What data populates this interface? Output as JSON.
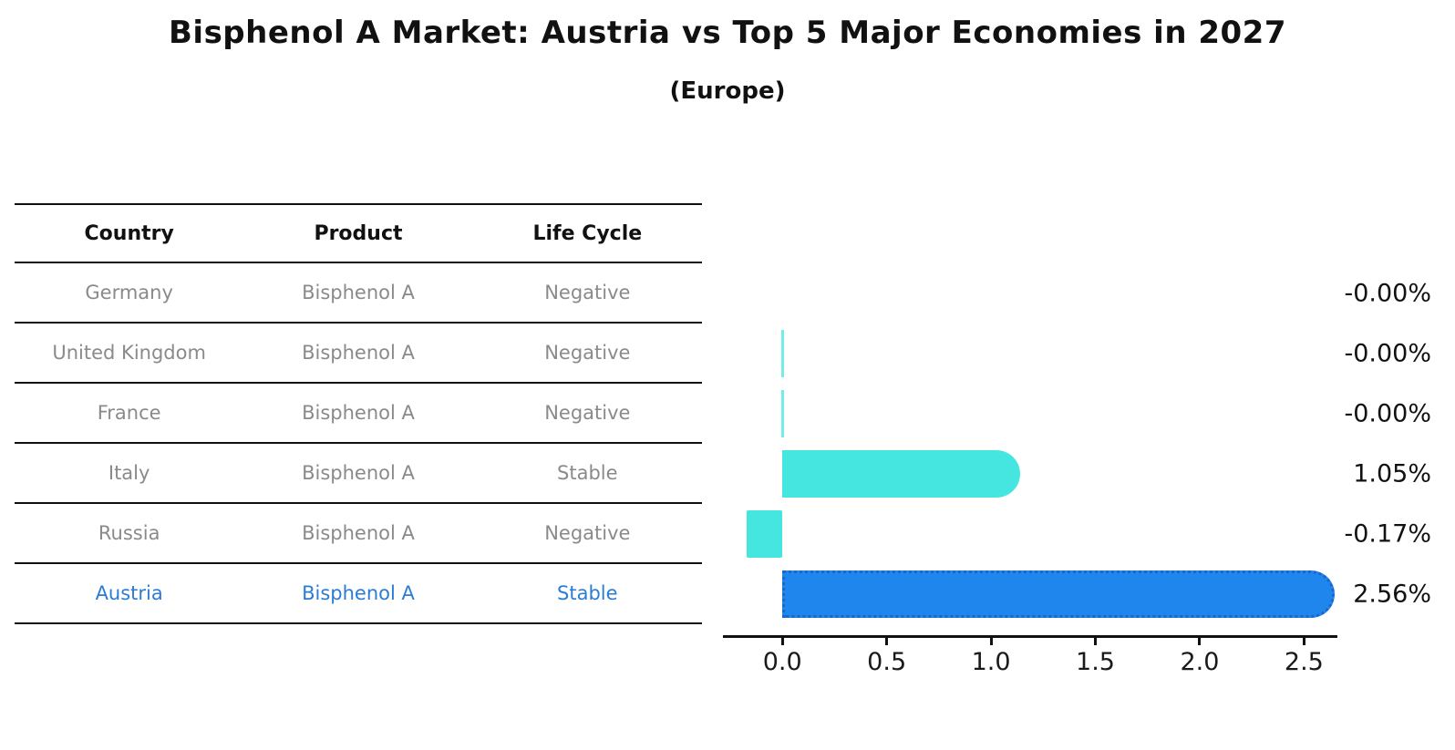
{
  "title": "Bisphenol A Market: Austria vs Top 5 Major Economies in 2027",
  "subtitle": "(Europe)",
  "table": {
    "headers": [
      "Country",
      "Product",
      "Life Cycle"
    ],
    "rows": [
      {
        "country": "Germany",
        "product": "Bisphenol A",
        "life_cycle": "Negative",
        "highlight": false
      },
      {
        "country": "United Kingdom",
        "product": "Bisphenol A",
        "life_cycle": "Negative",
        "highlight": false
      },
      {
        "country": "France",
        "product": "Bisphenol A",
        "life_cycle": "Negative",
        "highlight": false
      },
      {
        "country": "Italy",
        "product": "Bisphenol A",
        "life_cycle": "Stable",
        "highlight": false
      },
      {
        "country": "Russia",
        "product": "Bisphenol A",
        "life_cycle": "Negative",
        "highlight": false
      },
      {
        "country": "Austria",
        "product": "Bisphenol A",
        "life_cycle": "Stable",
        "highlight": true
      }
    ]
  },
  "chart_data": {
    "type": "bar",
    "orientation": "horizontal",
    "title": "Bisphenol A Market: Austria vs Top 5 Major Economies in 2027",
    "subtitle": "(Europe)",
    "categories": [
      "Germany",
      "United Kingdom",
      "France",
      "Italy",
      "Russia",
      "Austria"
    ],
    "values": [
      -0.0,
      -0.0,
      -0.0,
      1.05,
      -0.17,
      2.56
    ],
    "value_labels": [
      "-0.00%",
      "-0.00%",
      "-0.00%",
      "1.05%",
      "-0.17%",
      "2.56%"
    ],
    "x_ticks": [
      0.0,
      0.5,
      1.0,
      1.5,
      2.0,
      2.5
    ],
    "x_tick_labels": [
      "0.0",
      "0.5",
      "1.0",
      "1.5",
      "2.0",
      "2.5"
    ],
    "xlim": [
      -0.285,
      2.66
    ],
    "bar_colors": [
      "#45e6e0",
      "#45e6e0",
      "#45e6e0",
      "#45e6e0",
      "#45e6e0",
      "#1e86ec"
    ],
    "highlight_index": 5,
    "zero_mark_rows": [
      1,
      2
    ],
    "grid": false,
    "legend": false,
    "value_label_position": "right-aligned outside plot"
  },
  "colors": {
    "teal": "#45e6e0",
    "blue": "#1e86ec",
    "blue_edge": "#1a66cc",
    "highlight_text": "#2a7cd4",
    "row_text": "#8a8a8a",
    "header_text": "#111111",
    "axis": "#111111"
  }
}
